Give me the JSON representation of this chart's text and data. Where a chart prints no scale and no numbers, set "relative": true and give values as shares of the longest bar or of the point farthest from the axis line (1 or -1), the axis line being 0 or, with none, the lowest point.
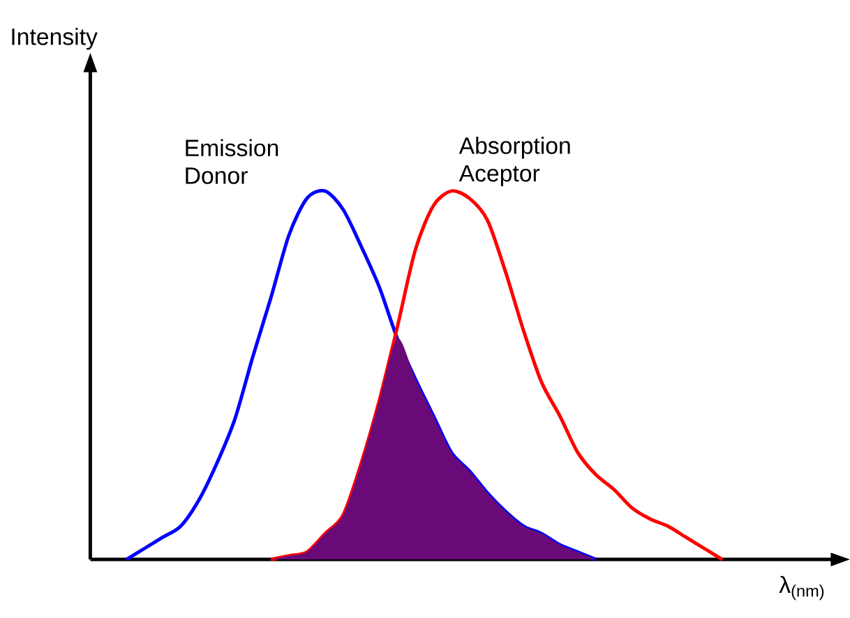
{
  "chart_data": {
    "type": "line",
    "relative": true,
    "xlabel": "λ$_{(nm)}$",
    "annotations": [
      "Intensity"
    ],
    "categories": [
      null,
      null,
      null,
      null,
      null,
      null,
      null,
      null,
      null,
      null,
      null,
      null,
      null,
      null,
      null,
      null,
      null,
      null,
      null,
      null,
      null,
      null,
      null,
      null,
      null,
      null,
      null,
      null,
      null,
      null,
      null,
      null,
      null,
      null,
      null,
      null,
      null,
      null,
      null,
      null,
      null
    ],
    "series": [
      {
        "name": "Emission Donor",
        "color": "#0000ff",
        "values": [
          null,
          null,
          0,
          0.03,
          0.06,
          0.09,
          0.16,
          0.26,
          0.38,
          0.55,
          0.71,
          0.88,
          0.98,
          1.0,
          0.95,
          0.85,
          0.74,
          0.6,
          0.49,
          0.39,
          0.29,
          0.24,
          0.18,
          0.13,
          0.09,
          0.07,
          0.04,
          0.02,
          0,
          null,
          null,
          null,
          null,
          null,
          null,
          null,
          null,
          null,
          null,
          null,
          null
        ]
      },
      {
        "name": "Absorption Aceptor",
        "color": "#ff0000",
        "values": [
          null,
          null,
          null,
          null,
          null,
          null,
          null,
          null,
          null,
          null,
          0,
          0.01,
          0.02,
          0.07,
          0.12,
          0.26,
          0.43,
          0.63,
          0.84,
          0.96,
          1.0,
          0.98,
          0.92,
          0.78,
          0.62,
          0.48,
          0.39,
          0.29,
          0.23,
          0.19,
          0.14,
          0.11,
          0.09,
          0.06,
          0.03,
          0,
          null,
          null,
          null,
          null,
          null
        ]
      },
      {
        "type": "area",
        "color": "#6a0a78",
        "values": [
          null,
          null,
          null,
          null,
          null,
          null,
          null,
          null,
          null,
          null,
          0,
          0.01,
          0.02,
          0.07,
          0.12,
          0.26,
          0.43,
          0.6,
          0.49,
          0.39,
          0.29,
          0.24,
          0.18,
          0.13,
          0.09,
          0.07,
          0.04,
          0.02,
          0,
          null,
          null,
          null,
          null,
          null,
          null,
          null,
          null,
          null,
          null,
          null,
          null
        ]
      }
    ]
  }
}
